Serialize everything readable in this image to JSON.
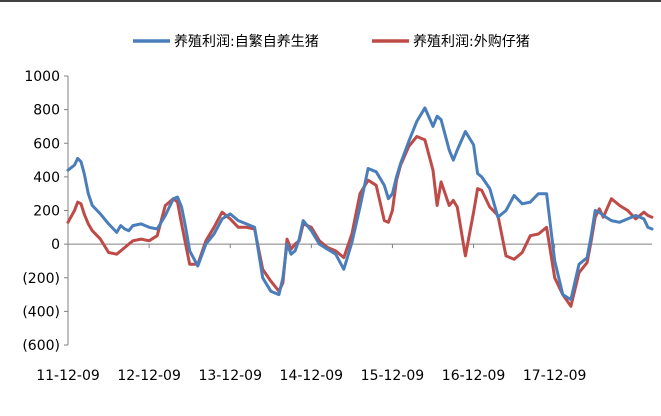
{
  "chart_data": {
    "type": "line",
    "title": "",
    "xlabel": "",
    "ylabel": "",
    "ylim": [
      -600,
      1000
    ],
    "yticks": [
      1000,
      800,
      600,
      400,
      200,
      0,
      -200,
      -400,
      -600
    ],
    "ytick_labels": [
      "1000",
      "800",
      "600",
      "400",
      "200",
      "0",
      "(200)",
      "(400)",
      "(600)"
    ],
    "negative_tick_color": "#c00000",
    "x_tick_labels": [
      "11-12-09",
      "12-12-09",
      "13-12-09",
      "14-12-09",
      "15-12-09",
      "16-12-09",
      "17-12-09"
    ],
    "x_range": [
      0,
      7.2
    ],
    "grid": false,
    "legend_position": "top",
    "series": [
      {
        "name": "养殖利润:自繁自养生猪",
        "color": "#4a7ebb",
        "x": [
          0,
          0.08,
          0.12,
          0.16,
          0.2,
          0.25,
          0.3,
          0.4,
          0.5,
          0.6,
          0.65,
          0.7,
          0.75,
          0.8,
          0.9,
          1.0,
          1.1,
          1.2,
          1.3,
          1.35,
          1.4,
          1.45,
          1.5,
          1.6,
          1.7,
          1.8,
          1.9,
          2.0,
          2.1,
          2.2,
          2.3,
          2.4,
          2.5,
          2.6,
          2.65,
          2.7,
          2.75,
          2.8,
          2.85,
          2.9,
          3.0,
          3.1,
          3.2,
          3.3,
          3.4,
          3.5,
          3.6,
          3.7,
          3.8,
          3.9,
          3.95,
          4.0,
          4.05,
          4.1,
          4.2,
          4.3,
          4.4,
          4.5,
          4.55,
          4.6,
          4.7,
          4.75,
          4.8,
          4.9,
          5.0,
          5.05,
          5.1,
          5.2,
          5.3,
          5.4,
          5.5,
          5.6,
          5.7,
          5.8,
          5.9,
          6.0,
          6.1,
          6.2,
          6.3,
          6.4,
          6.45,
          6.5,
          6.55,
          6.6,
          6.7,
          6.8,
          6.9,
          7.0,
          7.1,
          7.15,
          7.2
        ],
        "values": [
          440,
          470,
          510,
          490,
          420,
          300,
          230,
          180,
          120,
          70,
          110,
          90,
          80,
          110,
          120,
          100,
          90,
          170,
          270,
          280,
          220,
          100,
          -40,
          -130,
          0,
          60,
          150,
          180,
          140,
          120,
          100,
          -200,
          -280,
          -300,
          -200,
          0,
          -60,
          -40,
          30,
          140,
          80,
          0,
          -30,
          -60,
          -150,
          10,
          220,
          450,
          430,
          350,
          270,
          300,
          400,
          480,
          610,
          730,
          810,
          700,
          760,
          740,
          560,
          500,
          560,
          670,
          590,
          420,
          400,
          330,
          160,
          200,
          290,
          240,
          250,
          300,
          300,
          -100,
          -300,
          -330,
          -120,
          -80,
          50,
          200,
          190,
          170,
          140,
          130,
          150,
          170,
          150,
          100,
          90
        ]
      },
      {
        "name": "养殖利润:外购仔猪",
        "color": "#be4b48",
        "x": [
          0,
          0.08,
          0.12,
          0.16,
          0.2,
          0.25,
          0.3,
          0.4,
          0.5,
          0.6,
          0.65,
          0.7,
          0.75,
          0.8,
          0.9,
          1.0,
          1.1,
          1.2,
          1.3,
          1.35,
          1.4,
          1.45,
          1.5,
          1.6,
          1.7,
          1.8,
          1.9,
          2.0,
          2.1,
          2.2,
          2.3,
          2.4,
          2.5,
          2.6,
          2.65,
          2.7,
          2.75,
          2.8,
          2.85,
          2.9,
          3.0,
          3.1,
          3.2,
          3.3,
          3.4,
          3.5,
          3.6,
          3.7,
          3.8,
          3.9,
          3.95,
          4.0,
          4.05,
          4.1,
          4.2,
          4.3,
          4.4,
          4.5,
          4.55,
          4.6,
          4.7,
          4.75,
          4.8,
          4.9,
          5.0,
          5.05,
          5.1,
          5.2,
          5.3,
          5.4,
          5.5,
          5.6,
          5.7,
          5.8,
          5.9,
          6.0,
          6.1,
          6.2,
          6.3,
          6.4,
          6.45,
          6.5,
          6.55,
          6.6,
          6.7,
          6.8,
          6.9,
          7.0,
          7.1,
          7.15,
          7.2
        ],
        "values": [
          130,
          200,
          250,
          240,
          180,
          120,
          80,
          30,
          -50,
          -60,
          -40,
          -20,
          0,
          20,
          30,
          20,
          50,
          230,
          270,
          250,
          120,
          0,
          -120,
          -120,
          20,
          100,
          190,
          150,
          100,
          100,
          90,
          -150,
          -220,
          -280,
          -230,
          30,
          -30,
          0,
          20,
          120,
          100,
          20,
          -20,
          -40,
          -80,
          60,
          300,
          380,
          350,
          140,
          130,
          200,
          380,
          470,
          580,
          640,
          620,
          440,
          230,
          370,
          230,
          260,
          220,
          -70,
          190,
          330,
          320,
          220,
          170,
          -70,
          -90,
          -50,
          50,
          60,
          100,
          -200,
          -300,
          -370,
          -170,
          -110,
          20,
          160,
          210,
          160,
          270,
          230,
          200,
          150,
          190,
          170,
          160
        ]
      }
    ]
  }
}
